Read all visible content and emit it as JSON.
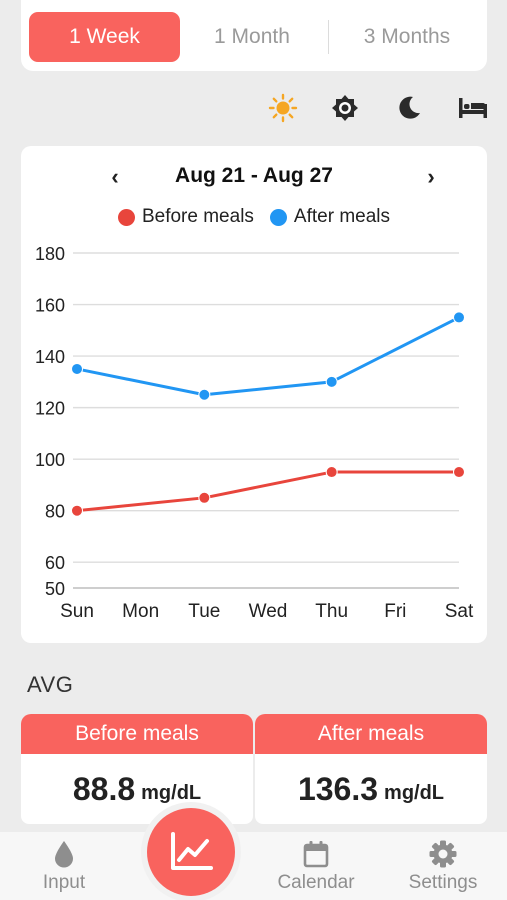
{
  "tabs": [
    {
      "label": "1 Week",
      "active": true
    },
    {
      "label": "1 Month",
      "active": false
    },
    {
      "label": "3 Months",
      "active": false
    }
  ],
  "time_filters": [
    {
      "icon": "sun-icon",
      "active": true
    },
    {
      "icon": "brightness-icon",
      "active": false
    },
    {
      "icon": "moon-icon",
      "active": false
    },
    {
      "icon": "bed-icon",
      "active": false
    }
  ],
  "chart": {
    "prev": "‹",
    "next": "›",
    "date_range": "Aug 21 - Aug 27"
  },
  "chart_data": {
    "type": "line",
    "x": [
      "Sun",
      "Mon",
      "Tue",
      "Wed",
      "Thu",
      "Fri",
      "Sat"
    ],
    "series": [
      {
        "name": "Before meals",
        "color": "#e8453c",
        "points": [
          [
            "Sun",
            80
          ],
          [
            "Tue",
            85
          ],
          [
            "Thu",
            95
          ],
          [
            "Sat",
            95
          ]
        ]
      },
      {
        "name": "After meals",
        "color": "#2196f3",
        "points": [
          [
            "Sun",
            135
          ],
          [
            "Tue",
            125
          ],
          [
            "Thu",
            130
          ],
          [
            "Sat",
            155
          ]
        ]
      }
    ],
    "yticks": [
      50,
      60,
      80,
      100,
      120,
      140,
      160,
      180
    ],
    "ylim": [
      50,
      180
    ],
    "grid": true,
    "legend": "top"
  },
  "avg": {
    "label": "AVG",
    "before": {
      "title": "Before meals",
      "value": "88.8",
      "unit": "mg/dL"
    },
    "after": {
      "title": "After meals",
      "value": "136.3",
      "unit": "mg/dL"
    }
  },
  "bottom_nav": {
    "input": "Input",
    "calendar": "Calendar",
    "settings": "Settings"
  },
  "colors": {
    "accent": "#f9635e",
    "before": "#e8453c",
    "after": "#2196f3",
    "sun": "#f5a623"
  }
}
